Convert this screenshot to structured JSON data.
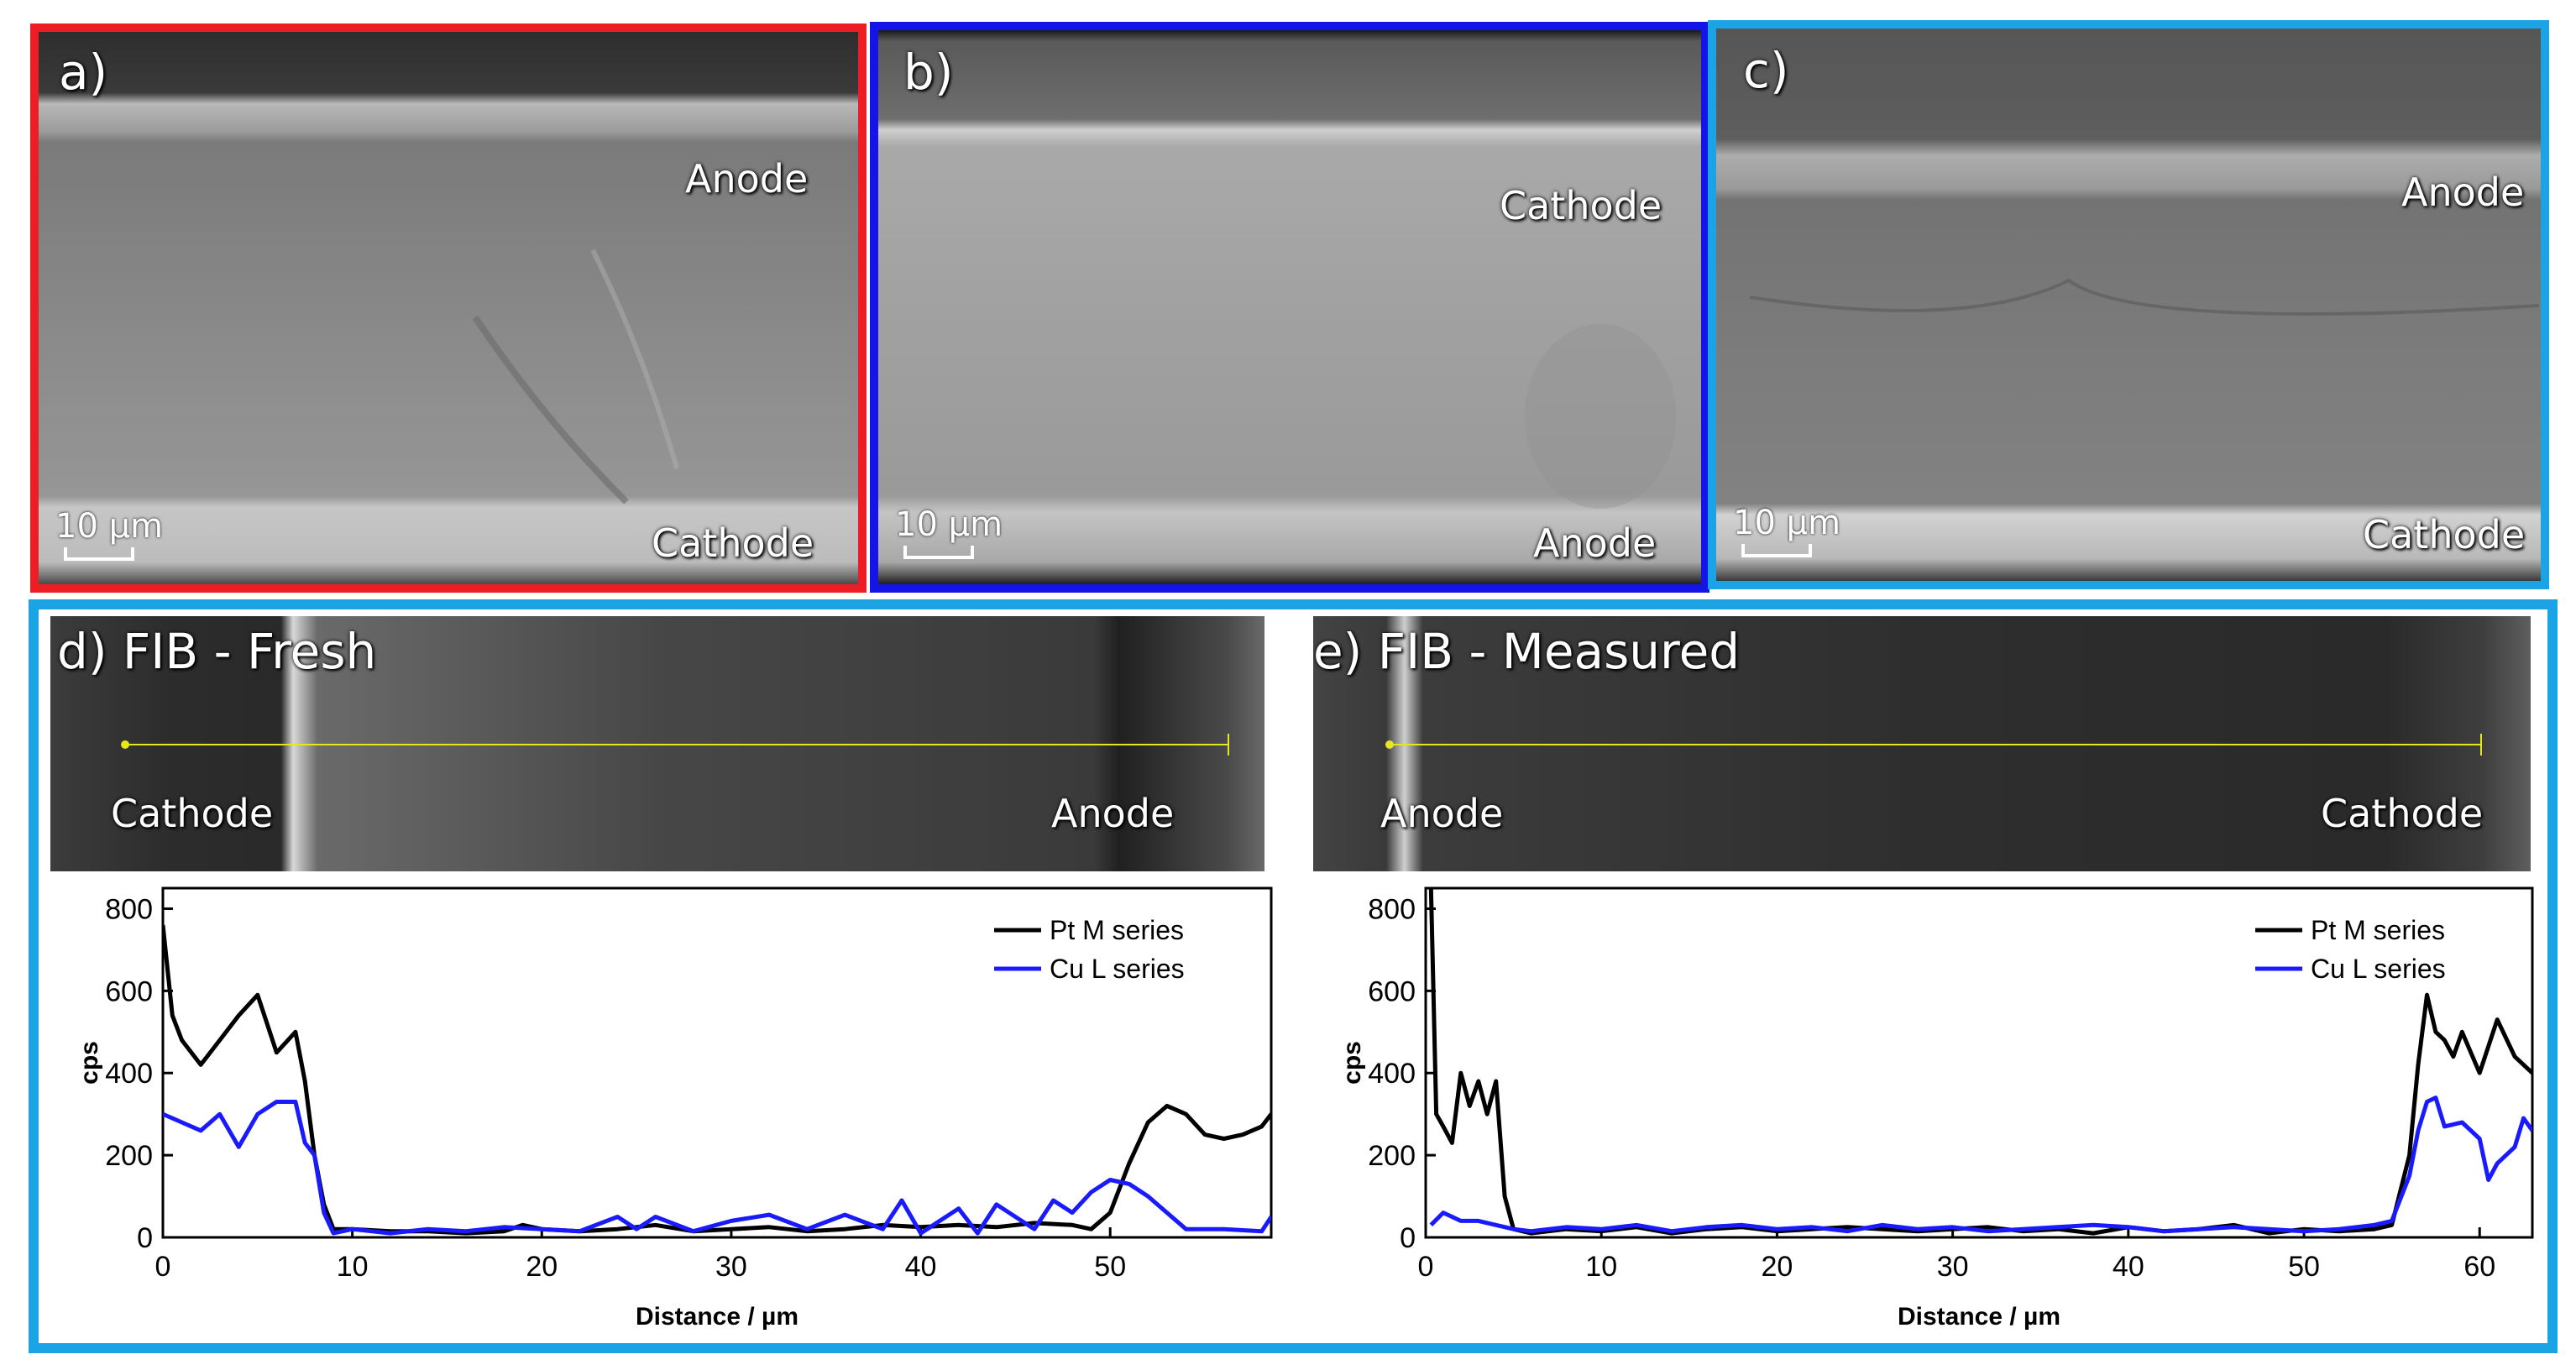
{
  "colors": {
    "frame_a": "#ee1c24",
    "frame_b": "#1414e6",
    "frame_c": "#1aa4e6",
    "frame_bottom": "#1aa4e6",
    "pt_series": "#000000",
    "cu_series": "#1a1aff",
    "profile_line": "#e6e61a"
  },
  "panels": {
    "a": {
      "label": "a)",
      "top_layer": "Anode",
      "bottom_layer": "Cathode",
      "scale": "10 µm"
    },
    "b": {
      "label": "b)",
      "top_layer": "Cathode",
      "bottom_layer": "Anode",
      "scale": "10 µm"
    },
    "c": {
      "label": "c)",
      "top_layer": "Anode",
      "bottom_layer": "Cathode",
      "scale": "10 µm"
    },
    "d": {
      "label": "d) FIB - Fresh",
      "left_layer": "Cathode",
      "right_layer": "Anode"
    },
    "e": {
      "label": "e) FIB - Measured",
      "left_layer": "Anode",
      "right_layer": "Cathode"
    }
  },
  "chart_data": [
    {
      "type": "line",
      "panel": "d",
      "xlabel": "Distance / µm",
      "ylabel": "cps",
      "xlim": [
        0,
        58.5
      ],
      "ylim": [
        0,
        850
      ],
      "xticks": [
        0,
        10,
        20,
        30,
        40,
        50
      ],
      "yticks": [
        0,
        200,
        400,
        600,
        800
      ],
      "legend_position": "top-right",
      "series": [
        {
          "name": "Pt M series",
          "color": "#000000",
          "x": [
            0,
            0.5,
            1,
            2,
            3,
            4,
            5,
            6,
            7,
            7.5,
            8,
            8.5,
            9,
            10,
            12,
            14,
            16,
            18,
            19,
            20,
            22,
            24,
            26,
            28,
            30,
            32,
            34,
            36,
            38,
            40,
            42,
            44,
            46,
            48,
            49,
            50,
            51,
            52,
            53,
            54,
            55,
            56,
            57,
            58,
            58.5
          ],
          "y": [
            760,
            540,
            480,
            420,
            480,
            540,
            590,
            450,
            500,
            380,
            200,
            80,
            20,
            20,
            15,
            15,
            10,
            15,
            30,
            20,
            15,
            20,
            30,
            15,
            20,
            25,
            15,
            20,
            30,
            25,
            30,
            25,
            35,
            30,
            20,
            60,
            180,
            280,
            320,
            300,
            250,
            240,
            250,
            270,
            300
          ]
        },
        {
          "name": "Cu L series",
          "color": "#1a1aff",
          "x": [
            0,
            1,
            2,
            3,
            4,
            5,
            6,
            7,
            7.5,
            8,
            8.5,
            9,
            10,
            12,
            14,
            16,
            18,
            20,
            22,
            24,
            25,
            26,
            28,
            30,
            32,
            34,
            36,
            38,
            39,
            40,
            42,
            43,
            44,
            46,
            47,
            48,
            49,
            50,
            51,
            52,
            54,
            56,
            58,
            58.5
          ],
          "y": [
            300,
            280,
            260,
            300,
            220,
            300,
            330,
            330,
            230,
            200,
            60,
            10,
            20,
            10,
            20,
            15,
            25,
            20,
            15,
            50,
            20,
            50,
            15,
            40,
            55,
            20,
            55,
            20,
            90,
            10,
            70,
            10,
            80,
            20,
            90,
            60,
            110,
            140,
            130,
            100,
            20,
            20,
            15,
            50
          ]
        }
      ]
    },
    {
      "type": "line",
      "panel": "e",
      "xlabel": "Distance / µm",
      "ylabel": "cps",
      "xlim": [
        0,
        63
      ],
      "ylim": [
        0,
        850
      ],
      "xticks": [
        0,
        10,
        20,
        30,
        40,
        50,
        60
      ],
      "yticks": [
        0,
        200,
        400,
        600,
        800
      ],
      "legend_position": "top-right",
      "series": [
        {
          "name": "Pt M series",
          "color": "#000000",
          "x": [
            0.3,
            0.6,
            1,
            1.5,
            2,
            2.5,
            3,
            3.5,
            4,
            4.5,
            5,
            6,
            8,
            10,
            12,
            14,
            16,
            18,
            20,
            22,
            24,
            26,
            28,
            30,
            32,
            34,
            36,
            38,
            40,
            42,
            44,
            46,
            48,
            50,
            52,
            54,
            55,
            56,
            56.5,
            57,
            57.5,
            58,
            58.5,
            59,
            60,
            61,
            62,
            63
          ],
          "y": [
            850,
            300,
            270,
            230,
            400,
            320,
            380,
            300,
            380,
            100,
            20,
            10,
            20,
            15,
            25,
            10,
            20,
            25,
            15,
            20,
            25,
            20,
            15,
            20,
            25,
            15,
            20,
            10,
            25,
            15,
            20,
            30,
            10,
            20,
            15,
            20,
            30,
            200,
            420,
            590,
            500,
            480,
            440,
            500,
            400,
            530,
            440,
            400
          ]
        },
        {
          "name": "Cu L series",
          "color": "#1a1aff",
          "x": [
            0.3,
            1,
            1.5,
            2,
            3,
            4,
            5,
            6,
            8,
            10,
            12,
            14,
            16,
            18,
            20,
            22,
            24,
            26,
            28,
            30,
            32,
            34,
            36,
            38,
            40,
            42,
            44,
            46,
            48,
            50,
            52,
            54,
            55,
            56,
            56.5,
            57,
            57.5,
            58,
            59,
            60,
            60.5,
            61,
            62,
            62.5,
            63
          ],
          "y": [
            30,
            60,
            50,
            40,
            40,
            30,
            20,
            15,
            25,
            20,
            30,
            15,
            25,
            30,
            20,
            25,
            15,
            30,
            20,
            25,
            15,
            20,
            25,
            30,
            25,
            15,
            20,
            25,
            20,
            15,
            20,
            30,
            40,
            150,
            260,
            330,
            340,
            270,
            280,
            240,
            140,
            180,
            220,
            290,
            260
          ]
        }
      ]
    }
  ]
}
